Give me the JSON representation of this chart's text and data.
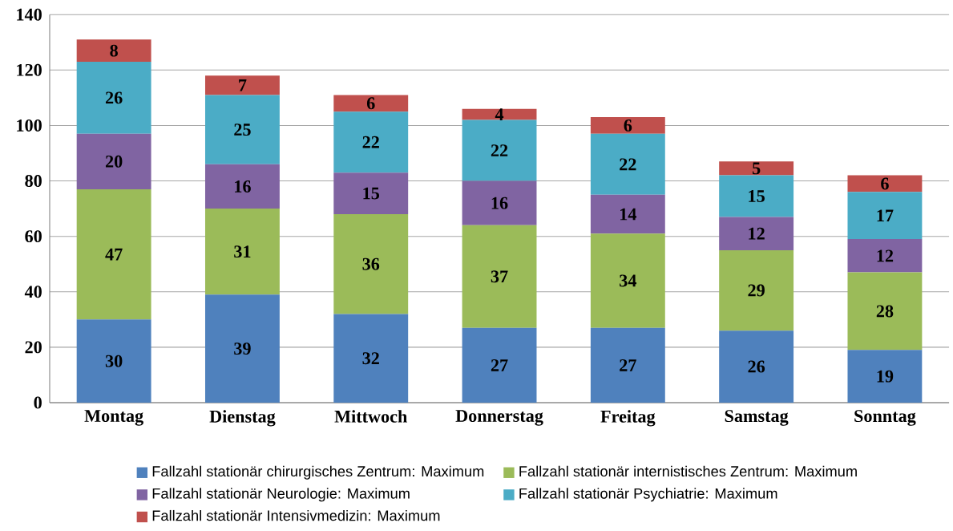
{
  "chart_data": {
    "type": "bar",
    "stacked": true,
    "categories": [
      "Montag",
      "Dienstag",
      "Mittwoch",
      "Donnerstag",
      "Freitag",
      "Samstag",
      "Sonntag"
    ],
    "series": [
      {
        "name": "Fallzahl stationär chirurgisches Zentrum: Maximum",
        "color": "#4f81bd",
        "values": [
          30,
          39,
          32,
          27,
          27,
          26,
          19
        ]
      },
      {
        "name": "Fallzahl stationär internistisches Zentrum: Maximum",
        "color": "#9bbb59",
        "values": [
          47,
          31,
          36,
          37,
          34,
          29,
          28
        ]
      },
      {
        "name": "Fallzahl stationär Neurologie: Maximum",
        "color": "#8064a2",
        "values": [
          20,
          16,
          15,
          16,
          14,
          12,
          12
        ]
      },
      {
        "name": "Fallzahl stationär Psychiatrie: Maximum",
        "color": "#4bacc6",
        "values": [
          26,
          25,
          22,
          22,
          22,
          15,
          17
        ]
      },
      {
        "name": "Fallzahl stationär Intensivmedizin: Maximum",
        "color": "#c0504d",
        "values": [
          8,
          7,
          6,
          4,
          6,
          5,
          6
        ]
      }
    ],
    "ylim": [
      0,
      140
    ],
    "yticks": [
      0,
      20,
      40,
      60,
      80,
      100,
      120,
      140
    ],
    "grid": "y",
    "legend": "bottom",
    "data_labels": true
  }
}
